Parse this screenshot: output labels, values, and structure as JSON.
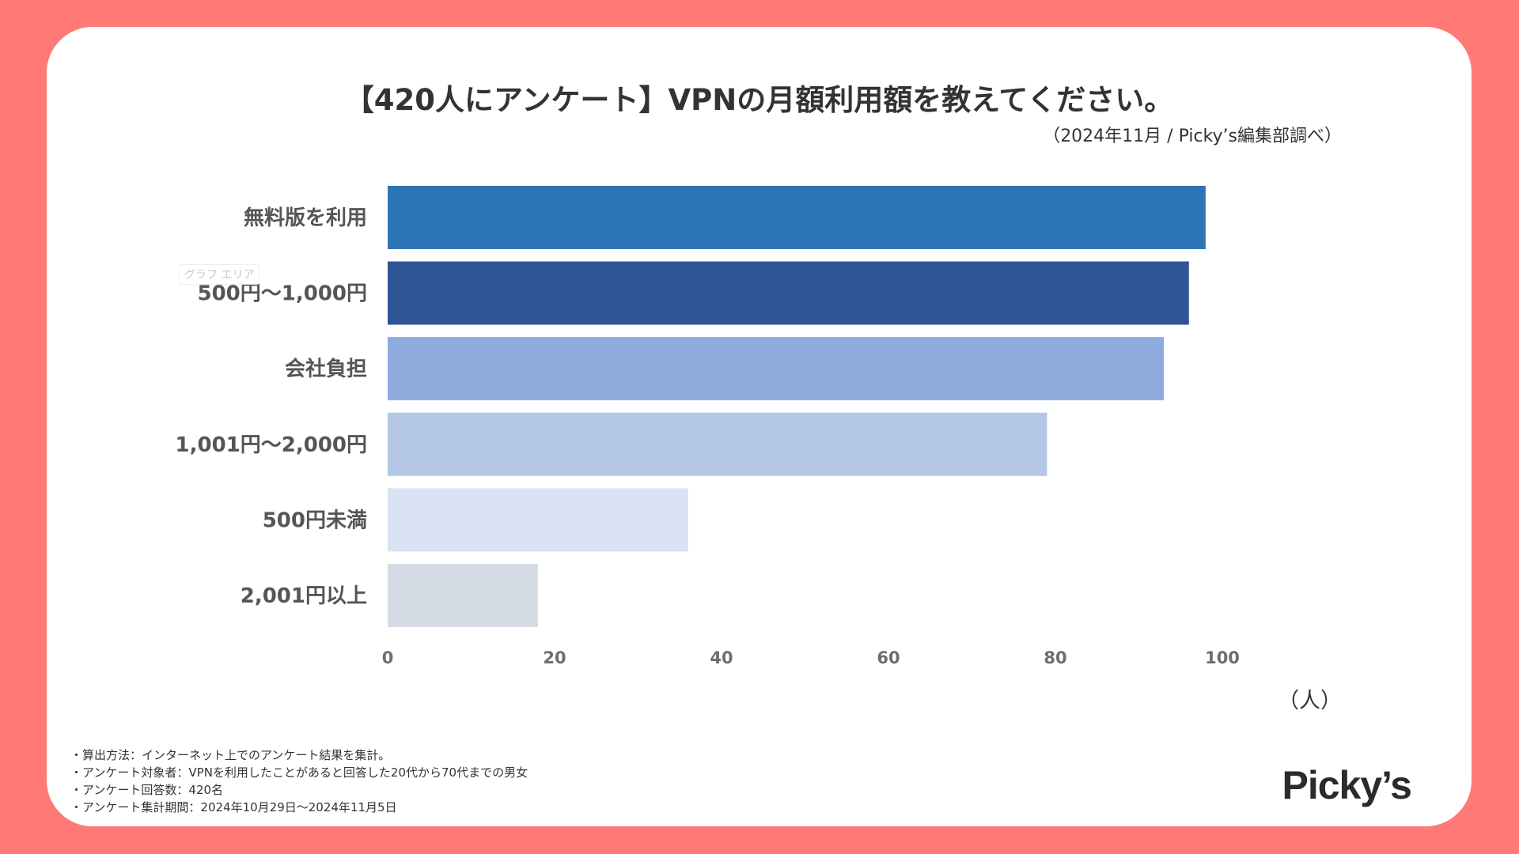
{
  "title": "【420人にアンケート】VPNの月額利用額を教えてください。",
  "source": "（2024年11月 / Picky’s編集部調べ）",
  "unit": "（人）",
  "hover_tooltip": "グラフ エリア",
  "notes": [
    "・算出方法：インターネット上でのアンケート結果を集計。",
    "・アンケート対象者：VPNを利用したことがあると回答した20代から70代までの男女",
    "・アンケート回答数：420名",
    "・アンケート集計期間：2024年10月29日〜2024年11月5日"
  ],
  "logo": "Picky’s",
  "colors": {
    "background": "#FF7A76",
    "card": "#FFFFFF",
    "bars": [
      "#2E75B6",
      "#2F5597",
      "#8FAADC",
      "#B4C7E7",
      "#DAE3F3",
      "#D6DCE5"
    ]
  },
  "chart_data": {
    "type": "bar",
    "orientation": "horizontal",
    "title": "【420人にアンケート】VPNの月額利用額を教えてください。",
    "categories": [
      "無料版を利用",
      "500円〜1,000円",
      "会社負担",
      "1,001円〜2,000円",
      "500円未満",
      "2,001円以上"
    ],
    "values": [
      98,
      96,
      93,
      79,
      36,
      18
    ],
    "xlabel": "（人）",
    "ylabel": "",
    "xlim": [
      0,
      100
    ],
    "ticks": [
      0,
      20,
      40,
      60,
      80,
      100
    ],
    "grid": false,
    "legend": "none"
  }
}
